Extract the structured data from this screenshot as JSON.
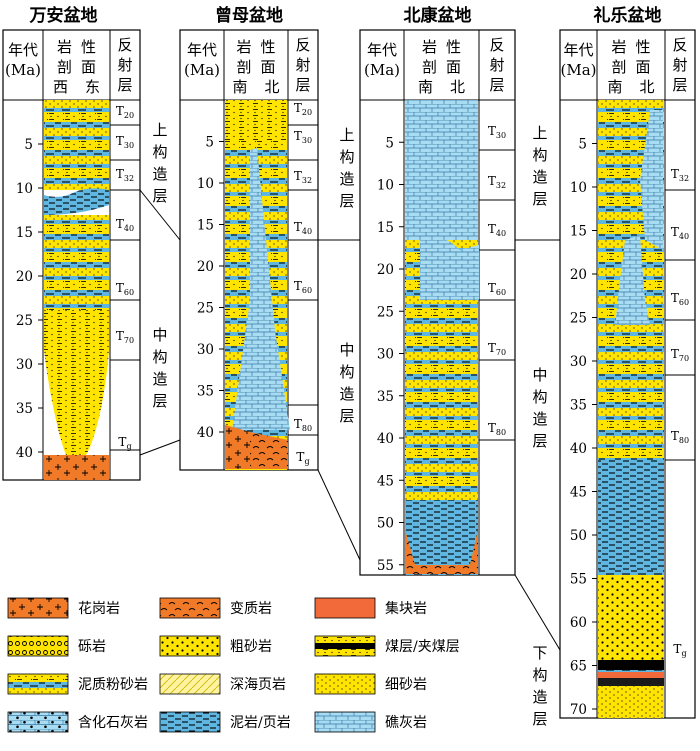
{
  "basins": [
    {
      "title": "万安盆地",
      "h_age": [
        "年代",
        "(Ma)"
      ],
      "h_lith": [
        "岩",
        "性",
        "剖",
        "面",
        "西",
        "东"
      ],
      "h_refl": [
        "反",
        "射",
        "层"
      ],
      "ages": [
        "5",
        "10",
        "15",
        "20",
        "25",
        "30",
        "35",
        "40"
      ],
      "reflectors": [
        [
          "T",
          "20"
        ],
        [
          "T",
          "30"
        ],
        [
          "T",
          "32"
        ],
        [
          "T",
          "40"
        ],
        [
          "T",
          "60"
        ],
        [
          "T",
          "70"
        ],
        [
          "T",
          "g"
        ]
      ],
      "tect": [
        [
          "上",
          "构",
          "造",
          "层"
        ],
        [
          "中",
          "构",
          "造",
          "层"
        ]
      ]
    },
    {
      "title": "曾母盆地",
      "h_age": [
        "年代",
        "(Ma)"
      ],
      "h_lith": [
        "岩",
        "性",
        "剖",
        "面",
        "南",
        "北"
      ],
      "h_refl": [
        "反",
        "射",
        "层"
      ],
      "ages": [
        "5",
        "10",
        "15",
        "20",
        "25",
        "30",
        "35",
        "40"
      ],
      "reflectors": [
        [
          "T",
          "20"
        ],
        [
          "T",
          "30"
        ],
        [
          "T",
          "32"
        ],
        [
          "T",
          "40"
        ],
        [
          "T",
          "60"
        ],
        [
          "T",
          "80"
        ],
        [
          "T",
          "g"
        ]
      ]
    },
    {
      "title": "北康盆地",
      "h_age": [
        "年代",
        "(Ma)"
      ],
      "h_lith": [
        "岩",
        "性",
        "剖",
        "面",
        "南",
        "北"
      ],
      "h_refl": [
        "反",
        "射",
        "层"
      ],
      "ages": [
        "5",
        "10",
        "15",
        "20",
        "25",
        "30",
        "35",
        "40",
        "45",
        "50",
        "55"
      ],
      "reflectors": [
        [
          "T",
          "30"
        ],
        [
          "T",
          "32"
        ],
        [
          "T",
          "40"
        ],
        [
          "T",
          "60"
        ],
        [
          "T",
          "70"
        ],
        [
          "T",
          "80"
        ]
      ],
      "tect": [
        [
          "上",
          "构",
          "造",
          "层"
        ],
        [
          "中",
          "构",
          "造",
          "层"
        ]
      ]
    },
    {
      "title": "礼乐盆地",
      "h_age": [
        "年代",
        "(Ma)"
      ],
      "h_lith": [
        "岩",
        "性",
        "剖",
        "面",
        "南",
        "北"
      ],
      "h_refl": [
        "反",
        "射",
        "层"
      ],
      "ages": [
        "5",
        "10",
        "15",
        "20",
        "25",
        "30",
        "35",
        "40",
        "45",
        "50",
        "55",
        "60",
        "65",
        "70"
      ],
      "reflectors": [
        [
          "T",
          "32"
        ],
        [
          "T",
          "40"
        ],
        [
          "T",
          "60"
        ],
        [
          "T",
          "70"
        ],
        [
          "T",
          "80"
        ],
        [
          "T",
          "g"
        ]
      ],
      "tect": [
        [
          "上",
          "构",
          "造",
          "层"
        ],
        [
          "中",
          "构",
          "造",
          "层"
        ],
        [
          "下",
          "构",
          "造",
          "层"
        ]
      ]
    }
  ],
  "legend": [
    "花岗岩",
    "变质岩",
    "集块岩",
    "砾岩",
    "粗砂岩",
    "煤层/夹煤层",
    "泥质粉砂岩",
    "深海页岩",
    "细砂岩",
    "含化石灰岩",
    "泥岩/页岩",
    "礁灰岩"
  ],
  "colors": {
    "sand": "#ffe400",
    "blue": "#5fb6e0",
    "lightblue": "#a8dcf2",
    "orange": "#f07a28",
    "agglomerate": "#f26a3a"
  }
}
